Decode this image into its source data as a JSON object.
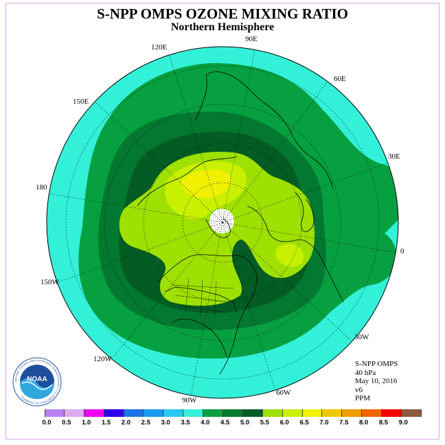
{
  "title": "S-NPP OMPS OZONE MIXING RATIO",
  "subtitle": "Northern Hemisphere",
  "longitude_labels": {
    "e120": "120E",
    "e90": "90E",
    "e60": "60E",
    "e150": "150E",
    "e30": "30E",
    "w180": "180",
    "e0": "0",
    "w150": "150W",
    "w30": "30W",
    "w120": "120W",
    "w60": "60W",
    "w90": "90W"
  },
  "info": {
    "instrument": "S-NPP OMPS",
    "level": "40 hPa",
    "date": "May 10, 2016",
    "version": "v6",
    "units": "PPM"
  },
  "logo": {
    "text": "NOAA",
    "ring_text": "NATIONAL OCEANIC AND ATMOSPHERIC ADMINISTRATION · U.S. DEPARTMENT OF COMMERCE"
  },
  "colorbar": {
    "colors": [
      "#b77ff0",
      "#dcaaf0",
      "#f000f0",
      "#3000e8",
      "#1a74e8",
      "#1a9cf0",
      "#28c8f0",
      "#33f0d8",
      "#06a040",
      "#037830",
      "#025c24",
      "#9ee000",
      "#c8f000",
      "#f0f000",
      "#f0c800",
      "#f09c00",
      "#f06400",
      "#f00000",
      "#8c5a3c"
    ],
    "tick_labels": [
      "0.0",
      "0.5",
      "1.0",
      "1.5",
      "2.0",
      "2.5",
      "3.0",
      "3.5",
      "4.0",
      "4.5",
      "5.0",
      "5.5",
      "6.0",
      "6.5",
      "7.0",
      "7.5",
      "8.0",
      "8.5",
      "9.0"
    ]
  }
}
